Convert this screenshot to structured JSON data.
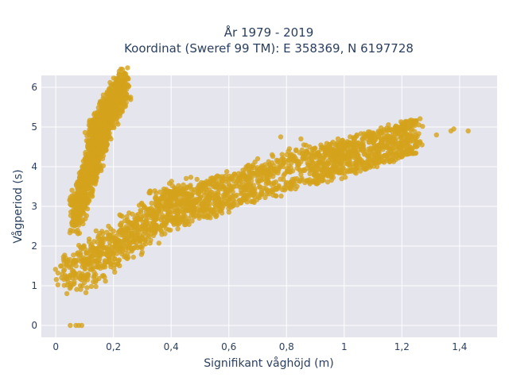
{
  "chart_data": {
    "type": "scatter",
    "title_line1": "År 1979 - 2019",
    "title_line2": "Koordinat (Sweref 99 TM): E 358369, N 6197728",
    "xlabel": "Signifikant våghöjd (m)",
    "ylabel": "Vågperiod (s)",
    "xlim": [
      -0.05,
      1.53
    ],
    "ylim": [
      -0.3,
      6.3
    ],
    "grid": true,
    "x_ticks": [
      "0",
      "0,2",
      "0,4",
      "0,6",
      "0,8",
      "1",
      "1,2",
      "1,4"
    ],
    "x_tick_values": [
      0,
      0.2,
      0.4,
      0.6,
      0.8,
      1.0,
      1.2,
      1.4
    ],
    "y_ticks": [
      "0",
      "1",
      "2",
      "3",
      "4",
      "5",
      "6"
    ],
    "y_tick_values": [
      0,
      1,
      2,
      3,
      4,
      5,
      6
    ],
    "marker_color": "#d4a21c",
    "background_color": "#e5e5ee",
    "clusters": [
      {
        "x0": 0.06,
        "x1": 0.16,
        "y0": 2.7,
        "y1": 4.9,
        "xs0": 0.0,
        "xs1": 0.05
      },
      {
        "x0": 0.12,
        "x1": 0.24,
        "y0": 4.5,
        "y1": 6.1,
        "xs0": -0.03,
        "xs1": 0.03
      },
      {
        "x0": 0.05,
        "x1": 0.45,
        "y0": 1.2,
        "y1": 3.3,
        "xs0": -0.35,
        "xs1": 0.35
      },
      {
        "x0": 0.4,
        "x1": 0.9,
        "y0": 2.9,
        "y1": 4.1,
        "xs0": -0.3,
        "xs1": 0.3
      },
      {
        "x0": 0.9,
        "x1": 1.25,
        "y0": 4.0,
        "y1": 4.8,
        "xs0": -0.12,
        "xs1": 0.12
      }
    ],
    "points": [
      [
        0.05,
        0.0
      ],
      [
        0.07,
        0.0
      ],
      [
        0.08,
        0.0
      ],
      [
        0.09,
        0.0
      ],
      [
        0.02,
        1.5
      ],
      [
        0.03,
        1.4
      ],
      [
        0.04,
        1.6
      ],
      [
        0.02,
        1.2
      ],
      [
        1.32,
        4.8
      ],
      [
        1.37,
        4.9
      ],
      [
        1.38,
        4.95
      ],
      [
        1.43,
        4.9
      ],
      [
        1.27,
        4.55
      ],
      [
        1.25,
        4.5
      ],
      [
        1.2,
        4.6
      ],
      [
        1.18,
        5.0
      ],
      [
        1.15,
        4.5
      ],
      [
        1.1,
        4.6
      ],
      [
        1.05,
        4.6
      ],
      [
        1.0,
        4.5
      ],
      [
        0.95,
        4.4
      ],
      [
        0.97,
        4.5
      ],
      [
        0.88,
        4.5
      ],
      [
        0.86,
        4.55
      ],
      [
        0.81,
        4.45
      ],
      [
        0.75,
        4.3
      ],
      [
        0.7,
        4.2
      ],
      [
        0.78,
        4.75
      ],
      [
        0.85,
        4.7
      ],
      [
        0.61,
        3.05
      ],
      [
        0.56,
        2.85
      ],
      [
        0.65,
        3.2
      ],
      [
        0.6,
        3.15
      ],
      [
        0.74,
        3.6
      ],
      [
        0.8,
        3.6
      ],
      [
        0.85,
        3.8
      ],
      [
        0.3,
        2.2
      ],
      [
        0.32,
        2.35
      ],
      [
        0.28,
        2.0
      ],
      [
        0.35,
        2.5
      ],
      [
        0.55,
        2.8
      ],
      [
        0.5,
        2.9
      ],
      [
        0.17,
        1.6
      ],
      [
        0.2,
        1.8
      ],
      [
        0.22,
        1.65
      ],
      [
        0.13,
        1.1
      ],
      [
        0.11,
        1.15
      ],
      [
        0.1,
        1.2
      ]
    ]
  }
}
